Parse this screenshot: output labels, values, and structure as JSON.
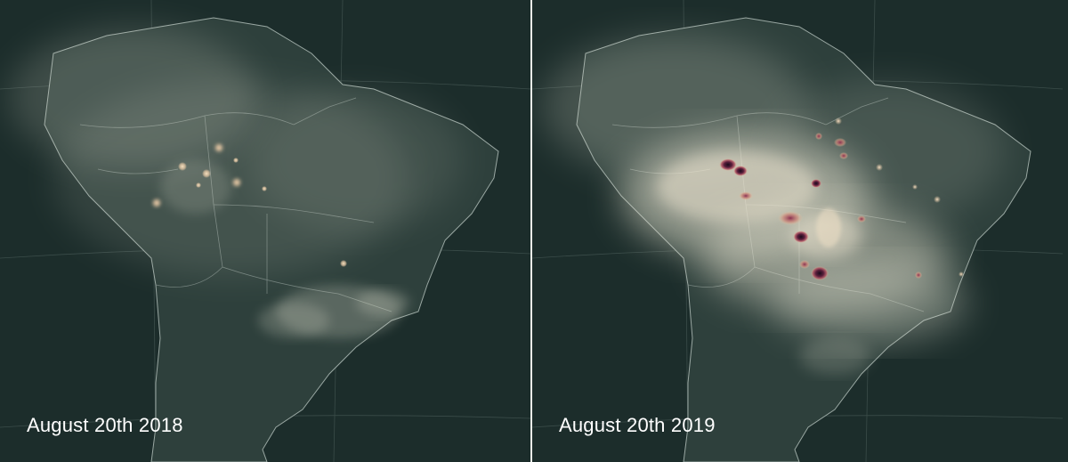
{
  "panels": [
    {
      "id": "left",
      "date_label": "August 20th 2018",
      "smoke_level": "low",
      "hotspot_intensity": "low"
    },
    {
      "id": "right",
      "date_label": "August 20th 2019",
      "smoke_level": "high",
      "hotspot_intensity": "high"
    }
  ],
  "colors": {
    "background": "#1f302e",
    "ocean": "#1c2d2b",
    "land": "#2e403c",
    "coastline": "#9aa8a3",
    "smoke": "#dcdccb",
    "hotspot_low": "#e8c9a5",
    "hotspot_mid": "#b04a5c",
    "hotspot_high": "#1a0b1c",
    "label_text": "#ffffff"
  }
}
